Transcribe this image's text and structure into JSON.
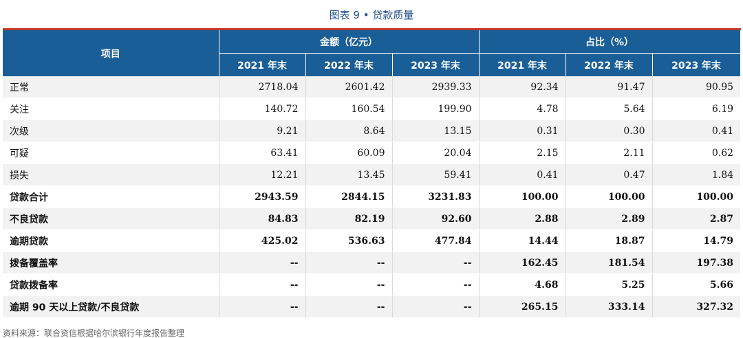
{
  "caption": "图表 9 • 贷款质量",
  "header": {
    "item": "项目",
    "group_amount": "金额（亿元）",
    "group_ratio": "占比（%）",
    "years": [
      "2021 年末",
      "2022 年末",
      "2023 年末",
      "2021 年末",
      "2022 年末",
      "2023 年末"
    ]
  },
  "rows": [
    {
      "label": "正常",
      "bold": false,
      "values": [
        "2718.04",
        "2601.42",
        "2939.33",
        "92.34",
        "91.47",
        "90.95"
      ]
    },
    {
      "label": "关注",
      "bold": false,
      "values": [
        "140.72",
        "160.54",
        "199.90",
        "4.78",
        "5.64",
        "6.19"
      ]
    },
    {
      "label": "次级",
      "bold": false,
      "values": [
        "9.21",
        "8.64",
        "13.15",
        "0.31",
        "0.30",
        "0.41"
      ]
    },
    {
      "label": "可疑",
      "bold": false,
      "values": [
        "63.41",
        "60.09",
        "20.04",
        "2.15",
        "2.11",
        "0.62"
      ]
    },
    {
      "label": "损失",
      "bold": false,
      "values": [
        "12.21",
        "13.45",
        "59.41",
        "0.41",
        "0.47",
        "1.84"
      ]
    },
    {
      "label": "贷款合计",
      "bold": true,
      "values": [
        "2943.59",
        "2844.15",
        "3231.83",
        "100.00",
        "100.00",
        "100.00"
      ]
    },
    {
      "label": "不良贷款",
      "bold": true,
      "values": [
        "84.83",
        "82.19",
        "92.60",
        "2.88",
        "2.89",
        "2.87"
      ]
    },
    {
      "label": "逾期贷款",
      "bold": true,
      "values": [
        "425.02",
        "536.63",
        "477.84",
        "14.44",
        "18.87",
        "14.79"
      ]
    },
    {
      "label": "拨备覆盖率",
      "bold": true,
      "values": [
        "--",
        "--",
        "--",
        "162.45",
        "181.54",
        "197.38"
      ]
    },
    {
      "label": "贷款拨备率",
      "bold": true,
      "values": [
        "--",
        "--",
        "--",
        "4.68",
        "5.25",
        "5.66"
      ]
    },
    {
      "label": "逾期 90 天以上贷款/不良贷款",
      "bold": true,
      "values": [
        "--",
        "--",
        "--",
        "265.15",
        "333.14",
        "327.32"
      ]
    }
  ],
  "source": "资料来源：联合资信根据哈尔滨银行年度报告整理",
  "colors": {
    "header_bg": "#1a5e97",
    "header_top_rule": "#c0392b",
    "caption": "#1f4e8c",
    "stripe": "#f2f2f2"
  }
}
